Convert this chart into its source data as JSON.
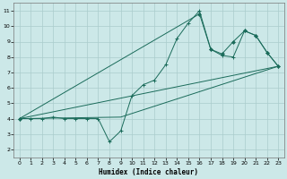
{
  "xlabel": "Humidex (Indice chaleur)",
  "bg_color": "#cce8e8",
  "grid_color": "#aacccc",
  "line_color": "#1a6b5a",
  "xlim": [
    -0.5,
    23.5
  ],
  "ylim": [
    1.5,
    11.5
  ],
  "xticks": [
    0,
    1,
    2,
    3,
    4,
    5,
    6,
    7,
    8,
    9,
    10,
    11,
    12,
    13,
    14,
    15,
    16,
    17,
    18,
    19,
    20,
    21,
    22,
    23
  ],
  "yticks": [
    2,
    3,
    4,
    5,
    6,
    7,
    8,
    9,
    10,
    11
  ],
  "curve1_x": [
    0,
    1,
    2,
    3,
    4,
    5,
    6,
    7,
    8,
    9,
    10,
    11,
    12,
    13,
    14,
    15,
    16,
    17,
    18,
    19,
    20,
    21,
    22,
    23
  ],
  "curve1_y": [
    4.0,
    4.0,
    4.0,
    4.1,
    4.0,
    4.0,
    4.0,
    4.0,
    2.5,
    3.2,
    5.5,
    6.2,
    6.5,
    7.5,
    9.2,
    10.2,
    11.0,
    8.5,
    8.1,
    8.0,
    9.7,
    9.4,
    8.3,
    7.4
  ],
  "curve2_x": [
    0,
    16,
    17,
    18,
    19,
    20,
    21,
    22,
    23
  ],
  "curve2_y": [
    4.0,
    10.8,
    8.5,
    8.2,
    9.0,
    9.7,
    9.4,
    8.3,
    7.4
  ],
  "line3_x": [
    0,
    23
  ],
  "line3_y": [
    4.0,
    7.4
  ],
  "line4_x": [
    0,
    9,
    23
  ],
  "line4_y": [
    4.0,
    4.1,
    7.4
  ]
}
